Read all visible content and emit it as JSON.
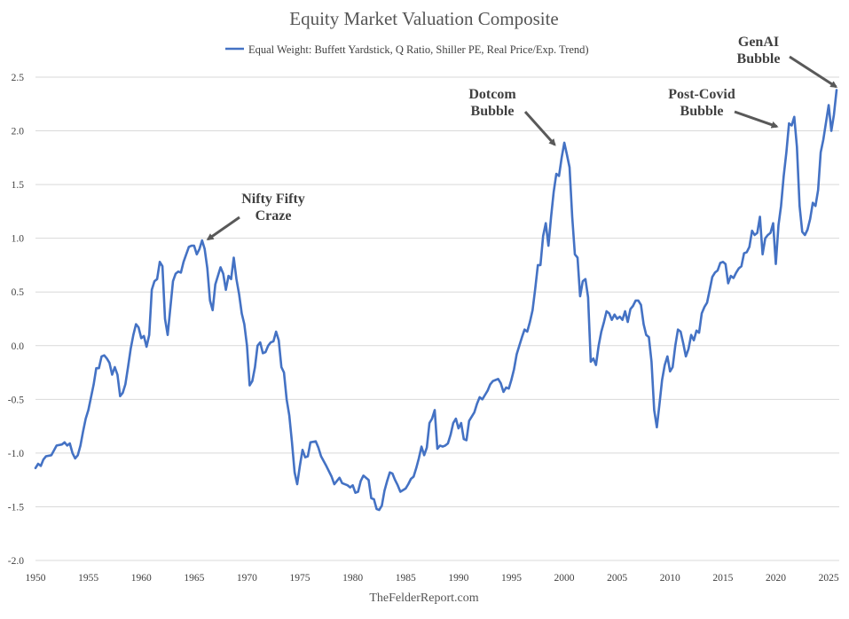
{
  "chart_data": {
    "type": "line",
    "title": "Equity Market Valuation Composite",
    "source": "TheFelderReport.com",
    "legend_placement": "top",
    "grid": true,
    "xlim": [
      1950,
      2026
    ],
    "ylim": [
      -2.0,
      2.5
    ],
    "x_ticks": [
      "1950",
      "1955",
      "1960",
      "1965",
      "1970",
      "1975",
      "1980",
      "1985",
      "1990",
      "1995",
      "2000",
      "2005",
      "2010",
      "2015",
      "2020",
      "2025"
    ],
    "y_ticks": [
      "2.5",
      "2.0",
      "1.5",
      "1.0",
      "0.5",
      "0.0",
      "-0.5",
      "-1.0",
      "-1.5",
      "-2.0"
    ],
    "series": [
      {
        "name": "Equal Weight: Buffett Yardstick, Q Ratio, Shiller PE, Real Price/Exp. Trend)",
        "color": "#4472c4",
        "points": [
          [
            1950.0,
            -1.14
          ],
          [
            1950.25,
            -1.1
          ],
          [
            1950.5,
            -1.12
          ],
          [
            1950.75,
            -1.06
          ],
          [
            1951.0,
            -1.03
          ],
          [
            1951.5,
            -1.02
          ],
          [
            1952.0,
            -0.93
          ],
          [
            1952.5,
            -0.92
          ],
          [
            1952.75,
            -0.9
          ],
          [
            1953.0,
            -0.93
          ],
          [
            1953.25,
            -0.91
          ],
          [
            1953.5,
            -1.0
          ],
          [
            1953.75,
            -1.05
          ],
          [
            1954.0,
            -1.02
          ],
          [
            1954.25,
            -0.93
          ],
          [
            1954.5,
            -0.8
          ],
          [
            1954.75,
            -0.68
          ],
          [
            1955.0,
            -0.6
          ],
          [
            1955.25,
            -0.48
          ],
          [
            1955.5,
            -0.36
          ],
          [
            1955.75,
            -0.21
          ],
          [
            1956.0,
            -0.21
          ],
          [
            1956.25,
            -0.1
          ],
          [
            1956.5,
            -0.09
          ],
          [
            1956.75,
            -0.12
          ],
          [
            1957.0,
            -0.16
          ],
          [
            1957.25,
            -0.27
          ],
          [
            1957.5,
            -0.2
          ],
          [
            1957.75,
            -0.27
          ],
          [
            1958.0,
            -0.47
          ],
          [
            1958.25,
            -0.44
          ],
          [
            1958.5,
            -0.36
          ],
          [
            1958.75,
            -0.2
          ],
          [
            1959.0,
            -0.03
          ],
          [
            1959.25,
            0.1
          ],
          [
            1959.5,
            0.2
          ],
          [
            1959.75,
            0.17
          ],
          [
            1960.0,
            0.07
          ],
          [
            1960.25,
            0.09
          ],
          [
            1960.5,
            -0.01
          ],
          [
            1960.75,
            0.1
          ],
          [
            1961.0,
            0.52
          ],
          [
            1961.25,
            0.6
          ],
          [
            1961.5,
            0.62
          ],
          [
            1961.75,
            0.78
          ],
          [
            1962.0,
            0.74
          ],
          [
            1962.25,
            0.25
          ],
          [
            1962.5,
            0.1
          ],
          [
            1962.75,
            0.35
          ],
          [
            1963.0,
            0.6
          ],
          [
            1963.25,
            0.67
          ],
          [
            1963.5,
            0.69
          ],
          [
            1963.75,
            0.68
          ],
          [
            1964.0,
            0.78
          ],
          [
            1964.25,
            0.85
          ],
          [
            1964.5,
            0.92
          ],
          [
            1964.75,
            0.93
          ],
          [
            1965.0,
            0.93
          ],
          [
            1965.25,
            0.85
          ],
          [
            1965.5,
            0.9
          ],
          [
            1965.75,
            0.98
          ],
          [
            1966.0,
            0.9
          ],
          [
            1966.25,
            0.72
          ],
          [
            1966.5,
            0.42
          ],
          [
            1966.75,
            0.33
          ],
          [
            1967.0,
            0.57
          ],
          [
            1967.5,
            0.73
          ],
          [
            1967.75,
            0.67
          ],
          [
            1968.0,
            0.52
          ],
          [
            1968.25,
            0.65
          ],
          [
            1968.5,
            0.62
          ],
          [
            1968.75,
            0.82
          ],
          [
            1969.0,
            0.62
          ],
          [
            1969.25,
            0.48
          ],
          [
            1969.5,
            0.3
          ],
          [
            1969.75,
            0.2
          ],
          [
            1970.0,
            0.0
          ],
          [
            1970.25,
            -0.37
          ],
          [
            1970.5,
            -0.33
          ],
          [
            1970.75,
            -0.2
          ],
          [
            1971.0,
            0.0
          ],
          [
            1971.25,
            0.03
          ],
          [
            1971.5,
            -0.07
          ],
          [
            1971.75,
            -0.06
          ],
          [
            1972.0,
            0.0
          ],
          [
            1972.25,
            0.03
          ],
          [
            1972.5,
            0.04
          ],
          [
            1972.75,
            0.13
          ],
          [
            1973.0,
            0.05
          ],
          [
            1973.25,
            -0.2
          ],
          [
            1973.5,
            -0.25
          ],
          [
            1973.75,
            -0.5
          ],
          [
            1974.0,
            -0.65
          ],
          [
            1974.25,
            -0.9
          ],
          [
            1974.5,
            -1.18
          ],
          [
            1974.75,
            -1.29
          ],
          [
            1975.0,
            -1.12
          ],
          [
            1975.25,
            -0.97
          ],
          [
            1975.5,
            -1.04
          ],
          [
            1975.75,
            -1.03
          ],
          [
            1976.0,
            -0.9
          ],
          [
            1976.5,
            -0.89
          ],
          [
            1976.75,
            -0.95
          ],
          [
            1977.0,
            -1.03
          ],
          [
            1977.5,
            -1.12
          ],
          [
            1978.0,
            -1.22
          ],
          [
            1978.25,
            -1.29
          ],
          [
            1978.75,
            -1.23
          ],
          [
            1979.0,
            -1.28
          ],
          [
            1979.5,
            -1.3
          ],
          [
            1979.75,
            -1.32
          ],
          [
            1980.0,
            -1.3
          ],
          [
            1980.25,
            -1.37
          ],
          [
            1980.5,
            -1.36
          ],
          [
            1980.75,
            -1.26
          ],
          [
            1981.0,
            -1.21
          ],
          [
            1981.5,
            -1.25
          ],
          [
            1981.75,
            -1.42
          ],
          [
            1982.0,
            -1.43
          ],
          [
            1982.25,
            -1.52
          ],
          [
            1982.5,
            -1.53
          ],
          [
            1982.75,
            -1.49
          ],
          [
            1983.0,
            -1.35
          ],
          [
            1983.25,
            -1.26
          ],
          [
            1983.5,
            -1.18
          ],
          [
            1983.75,
            -1.19
          ],
          [
            1984.0,
            -1.25
          ],
          [
            1984.25,
            -1.3
          ],
          [
            1984.5,
            -1.36
          ],
          [
            1985.0,
            -1.33
          ],
          [
            1985.25,
            -1.29
          ],
          [
            1985.5,
            -1.24
          ],
          [
            1985.75,
            -1.22
          ],
          [
            1986.0,
            -1.14
          ],
          [
            1986.25,
            -1.05
          ],
          [
            1986.5,
            -0.94
          ],
          [
            1986.75,
            -1.02
          ],
          [
            1987.0,
            -0.95
          ],
          [
            1987.25,
            -0.72
          ],
          [
            1987.5,
            -0.68
          ],
          [
            1987.75,
            -0.6
          ],
          [
            1988.0,
            -0.96
          ],
          [
            1988.25,
            -0.93
          ],
          [
            1988.5,
            -0.94
          ],
          [
            1988.75,
            -0.93
          ],
          [
            1989.0,
            -0.91
          ],
          [
            1989.25,
            -0.83
          ],
          [
            1989.5,
            -0.72
          ],
          [
            1989.75,
            -0.68
          ],
          [
            1990.0,
            -0.77
          ],
          [
            1990.25,
            -0.72
          ],
          [
            1990.5,
            -0.87
          ],
          [
            1990.75,
            -0.88
          ],
          [
            1991.0,
            -0.7
          ],
          [
            1991.5,
            -0.62
          ],
          [
            1991.75,
            -0.54
          ],
          [
            1992.0,
            -0.48
          ],
          [
            1992.25,
            -0.5
          ],
          [
            1992.5,
            -0.46
          ],
          [
            1992.75,
            -0.42
          ],
          [
            1993.0,
            -0.36
          ],
          [
            1993.25,
            -0.33
          ],
          [
            1993.5,
            -0.32
          ],
          [
            1993.75,
            -0.31
          ],
          [
            1994.0,
            -0.35
          ],
          [
            1994.25,
            -0.43
          ],
          [
            1994.5,
            -0.39
          ],
          [
            1994.75,
            -0.4
          ],
          [
            1995.0,
            -0.32
          ],
          [
            1995.25,
            -0.22
          ],
          [
            1995.5,
            -0.08
          ],
          [
            1995.75,
            0.0
          ],
          [
            1996.0,
            0.08
          ],
          [
            1996.25,
            0.15
          ],
          [
            1996.5,
            0.13
          ],
          [
            1996.75,
            0.22
          ],
          [
            1997.0,
            0.33
          ],
          [
            1997.25,
            0.53
          ],
          [
            1997.5,
            0.75
          ],
          [
            1997.75,
            0.75
          ],
          [
            1998.0,
            1.02
          ],
          [
            1998.25,
            1.14
          ],
          [
            1998.5,
            0.93
          ],
          [
            1998.75,
            1.2
          ],
          [
            1999.0,
            1.43
          ],
          [
            1999.25,
            1.6
          ],
          [
            1999.5,
            1.58
          ],
          [
            1999.75,
            1.75
          ],
          [
            2000.0,
            1.89
          ],
          [
            2000.25,
            1.78
          ],
          [
            2000.5,
            1.66
          ],
          [
            2000.75,
            1.2
          ],
          [
            2001.0,
            0.85
          ],
          [
            2001.25,
            0.82
          ],
          [
            2001.5,
            0.46
          ],
          [
            2001.75,
            0.6
          ],
          [
            2002.0,
            0.62
          ],
          [
            2002.25,
            0.45
          ],
          [
            2002.5,
            -0.15
          ],
          [
            2002.75,
            -0.12
          ],
          [
            2003.0,
            -0.18
          ],
          [
            2003.25,
            0.0
          ],
          [
            2003.5,
            0.13
          ],
          [
            2003.75,
            0.22
          ],
          [
            2004.0,
            0.32
          ],
          [
            2004.25,
            0.3
          ],
          [
            2004.5,
            0.24
          ],
          [
            2004.75,
            0.29
          ],
          [
            2005.0,
            0.25
          ],
          [
            2005.25,
            0.27
          ],
          [
            2005.5,
            0.24
          ],
          [
            2005.75,
            0.32
          ],
          [
            2006.0,
            0.22
          ],
          [
            2006.25,
            0.34
          ],
          [
            2006.5,
            0.37
          ],
          [
            2006.75,
            0.42
          ],
          [
            2007.0,
            0.42
          ],
          [
            2007.25,
            0.38
          ],
          [
            2007.5,
            0.2
          ],
          [
            2007.75,
            0.1
          ],
          [
            2008.0,
            0.08
          ],
          [
            2008.25,
            -0.15
          ],
          [
            2008.5,
            -0.6
          ],
          [
            2008.75,
            -0.76
          ],
          [
            2009.0,
            -0.55
          ],
          [
            2009.25,
            -0.32
          ],
          [
            2009.5,
            -0.18
          ],
          [
            2009.75,
            -0.1
          ],
          [
            2010.0,
            -0.24
          ],
          [
            2010.25,
            -0.2
          ],
          [
            2010.5,
            0.0
          ],
          [
            2010.75,
            0.15
          ],
          [
            2011.0,
            0.13
          ],
          [
            2011.25,
            0.02
          ],
          [
            2011.5,
            -0.1
          ],
          [
            2011.75,
            -0.03
          ],
          [
            2012.0,
            0.1
          ],
          [
            2012.25,
            0.05
          ],
          [
            2012.5,
            0.14
          ],
          [
            2012.75,
            0.12
          ],
          [
            2013.0,
            0.3
          ],
          [
            2013.25,
            0.36
          ],
          [
            2013.5,
            0.4
          ],
          [
            2013.75,
            0.52
          ],
          [
            2014.0,
            0.64
          ],
          [
            2014.25,
            0.68
          ],
          [
            2014.5,
            0.7
          ],
          [
            2014.75,
            0.77
          ],
          [
            2015.0,
            0.78
          ],
          [
            2015.25,
            0.76
          ],
          [
            2015.5,
            0.58
          ],
          [
            2015.75,
            0.65
          ],
          [
            2016.0,
            0.63
          ],
          [
            2016.25,
            0.68
          ],
          [
            2016.5,
            0.72
          ],
          [
            2016.75,
            0.74
          ],
          [
            2017.0,
            0.86
          ],
          [
            2017.25,
            0.87
          ],
          [
            2017.5,
            0.92
          ],
          [
            2017.75,
            1.07
          ],
          [
            2018.0,
            1.03
          ],
          [
            2018.25,
            1.05
          ],
          [
            2018.5,
            1.2
          ],
          [
            2018.75,
            0.85
          ],
          [
            2019.0,
            1.0
          ],
          [
            2019.25,
            1.03
          ],
          [
            2019.5,
            1.05
          ],
          [
            2019.75,
            1.14
          ],
          [
            2020.0,
            0.76
          ],
          [
            2020.25,
            1.12
          ],
          [
            2020.5,
            1.3
          ],
          [
            2020.75,
            1.58
          ],
          [
            2021.0,
            1.8
          ],
          [
            2021.25,
            2.07
          ],
          [
            2021.5,
            2.05
          ],
          [
            2021.75,
            2.13
          ],
          [
            2022.0,
            1.85
          ],
          [
            2022.25,
            1.3
          ],
          [
            2022.5,
            1.06
          ],
          [
            2022.75,
            1.03
          ],
          [
            2023.0,
            1.08
          ],
          [
            2023.25,
            1.18
          ],
          [
            2023.5,
            1.33
          ],
          [
            2023.75,
            1.3
          ],
          [
            2024.0,
            1.45
          ],
          [
            2024.25,
            1.8
          ],
          [
            2024.5,
            1.92
          ],
          [
            2024.75,
            2.08
          ],
          [
            2025.0,
            2.24
          ],
          [
            2025.25,
            2.0
          ],
          [
            2025.5,
            2.15
          ],
          [
            2025.75,
            2.38
          ]
        ]
      }
    ],
    "annotations": [
      {
        "id": "nifty",
        "lines": [
          "Nifty Fifty",
          "Craze"
        ],
        "arrow_tip": [
          1966.3,
          0.99
        ]
      },
      {
        "id": "dotcom",
        "lines": [
          "Dotcom",
          "Bubble"
        ],
        "arrow_tip": [
          1999.1,
          1.87
        ]
      },
      {
        "id": "postcovid",
        "lines": [
          "Post-Covid",
          "Bubble"
        ],
        "arrow_tip": [
          2020.1,
          2.04
        ]
      },
      {
        "id": "genai",
        "lines": [
          "GenAI",
          "Bubble"
        ],
        "arrow_tip": [
          2025.7,
          2.41
        ]
      }
    ]
  }
}
